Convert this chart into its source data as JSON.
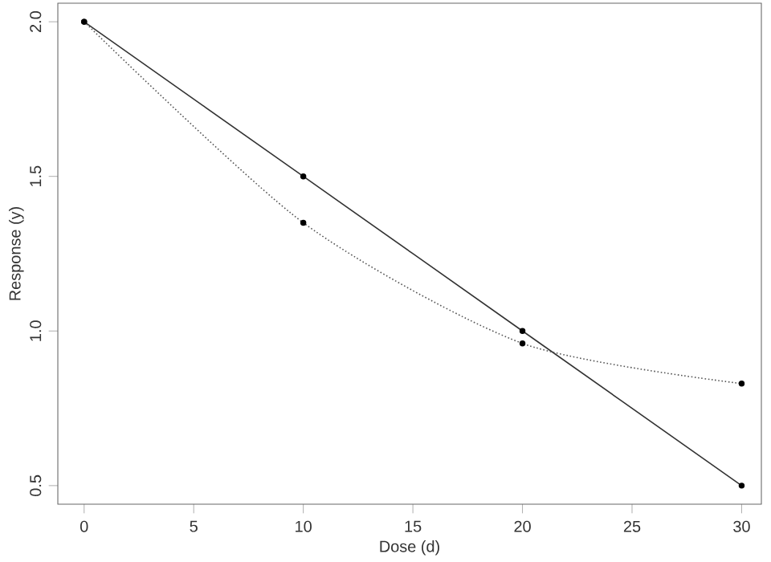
{
  "chart_data": {
    "type": "line",
    "xlabel": "Dose (d)",
    "ylabel": "Response (y)",
    "x": [
      0,
      10,
      20,
      30
    ],
    "series": [
      {
        "color": "#333333",
        "line_style": "solid",
        "values": [
          2.0,
          1.5,
          1.0,
          0.5
        ]
      },
      {
        "color": "#555555",
        "line_style": "dotted",
        "values": [
          2.0,
          1.35,
          0.96,
          0.83
        ]
      }
    ],
    "marker": "circle",
    "grid": false,
    "xlim": [
      -1.2,
      30.9
    ],
    "ylim": [
      0.44,
      2.06
    ],
    "xticks": [
      0,
      5,
      10,
      15,
      20,
      25,
      30
    ],
    "yticks": [
      {
        "value": 0.5,
        "label": "0.5"
      },
      {
        "value": 1.0,
        "label": "1.0"
      },
      {
        "value": 1.5,
        "label": "1.5"
      },
      {
        "value": 2.0,
        "label": "2.0"
      }
    ]
  }
}
